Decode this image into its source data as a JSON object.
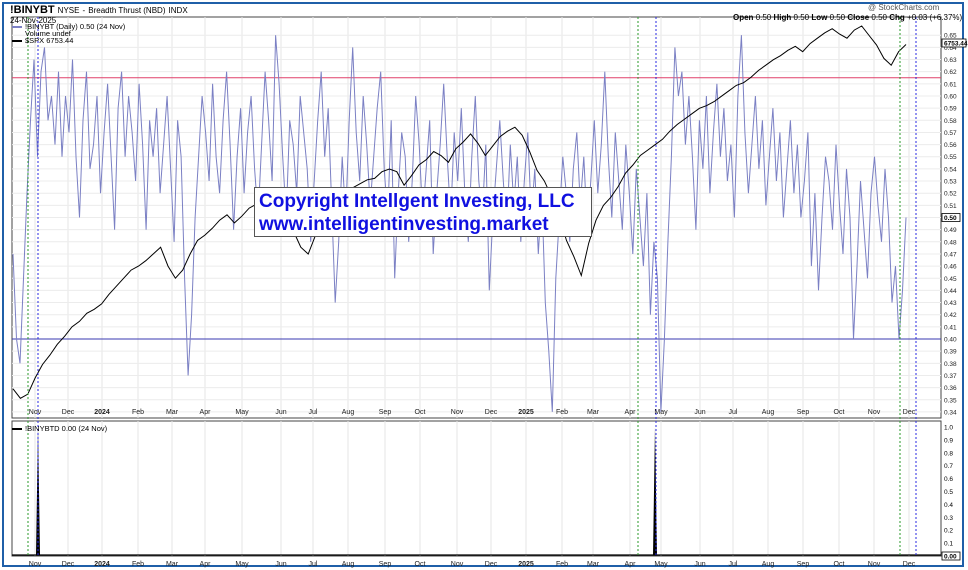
{
  "header": {
    "symbol": "!BINYBT",
    "exchange": "NYSE",
    "description": "Breadth Thrust (NBD)",
    "market": "INDX",
    "date": "24-Nov-2025",
    "credit": "@ StockCharts.com",
    "ohlc": {
      "open_label": "Open",
      "open": "0.50",
      "high_label": "High",
      "high": "0.50",
      "low_label": "Low",
      "low": "0.50",
      "close_label": "Close",
      "close": "0.50",
      "chg_label": "Chg",
      "chg": "+0.03 (+6.37%)"
    }
  },
  "legend": {
    "series1": "!BINYBT (Daily) 0.50 (24 Nov)",
    "series2": "Volume undef",
    "series3": "$SPX 6753.44"
  },
  "lower_legend": "!BINYBTD 0.00 (24 Nov)",
  "watermark": {
    "line1": "Copyright Intellgent Investing, LLC",
    "line2": "www.intelligentinvesting.market"
  },
  "colors": {
    "breadth": "#7b80c4",
    "spx": "#000000",
    "red_line": "#e0406a",
    "blue_line": "#3a3ab0",
    "green_marker": "#2a9a2a",
    "blue_marker": "#2a2ae0",
    "watermark_text": "#1010e0",
    "frame": "#1f5fa8"
  },
  "chart_data": [
    {
      "type": "line",
      "title": "!BINYBT NYSE - Breadth Thrust (NBD) INDX",
      "x_axis_ticks": [
        "Nov",
        "Dec",
        "2024",
        "Feb",
        "Mar",
        "Apr",
        "May",
        "Jun",
        "Jul",
        "Aug",
        "Sep",
        "Oct",
        "Nov",
        "Dec",
        "2025",
        "Feb",
        "Mar",
        "Apr",
        "May",
        "Jun",
        "Jul",
        "Aug",
        "Sep",
        "Oct",
        "Nov",
        "Dec"
      ],
      "y_axis_ticks": [
        "0.65",
        "0.64",
        "0.63",
        "0.62",
        "0.61",
        "0.60",
        "0.59",
        "0.58",
        "0.57",
        "0.56",
        "0.55",
        "0.54",
        "0.53",
        "0.52",
        "0.51",
        "0.50",
        "0.49",
        "0.48",
        "0.47",
        "0.46",
        "0.45",
        "0.44",
        "0.43",
        "0.42",
        "0.41",
        "0.40",
        "0.39",
        "0.38",
        "0.37",
        "0.36",
        "0.35",
        "0.34"
      ],
      "ylim": [
        0.335,
        0.665
      ],
      "horizontal_lines": [
        {
          "value": 0.615,
          "color": "red"
        },
        {
          "value": 0.4,
          "color": "blue"
        }
      ],
      "last_value_labels": [
        "6753.44",
        "0.50"
      ],
      "series": [
        {
          "name": "!BINYBT (Daily) 0.50 (24 Nov)",
          "axis": "right",
          "values": [
            0.47,
            0.4,
            0.38,
            0.45,
            0.52,
            0.58,
            0.63,
            0.55,
            0.62,
            0.64,
            0.58,
            0.6,
            0.56,
            0.62,
            0.55,
            0.6,
            0.57,
            0.63,
            0.55,
            0.5,
            0.58,
            0.62,
            0.54,
            0.56,
            0.6,
            0.52,
            0.57,
            0.61,
            0.55,
            0.49,
            0.59,
            0.62,
            0.55,
            0.6,
            0.57,
            0.53,
            0.61,
            0.56,
            0.49,
            0.58,
            0.55,
            0.59,
            0.52,
            0.56,
            0.6,
            0.54,
            0.48,
            0.58,
            0.55,
            0.45,
            0.37,
            0.42,
            0.5,
            0.55,
            0.6,
            0.57,
            0.53,
            0.61,
            0.55,
            0.52,
            0.58,
            0.62,
            0.56,
            0.49,
            0.55,
            0.59,
            0.52,
            0.57,
            0.6,
            0.54,
            0.5,
            0.56,
            0.62,
            0.58,
            0.53,
            0.65,
            0.61,
            0.55,
            0.5,
            0.58,
            0.56,
            0.52,
            0.6,
            0.57,
            0.54,
            0.48,
            0.53,
            0.58,
            0.62,
            0.55,
            0.59,
            0.51,
            0.43,
            0.48,
            0.55,
            0.5,
            0.58,
            0.64,
            0.57,
            0.53,
            0.6,
            0.56,
            0.51,
            0.55,
            0.59,
            0.62,
            0.54,
            0.5,
            0.58,
            0.45,
            0.52,
            0.57,
            0.55,
            0.48,
            0.53,
            0.6,
            0.56,
            0.5,
            0.54,
            0.58,
            0.47,
            0.52,
            0.56,
            0.61,
            0.55,
            0.5,
            0.57,
            0.53,
            0.59,
            0.52,
            0.48,
            0.55,
            0.6,
            0.53,
            0.5,
            0.56,
            0.44,
            0.5,
            0.54,
            0.58,
            0.53,
            0.49,
            0.56,
            0.51,
            0.55,
            0.48,
            0.53,
            0.57,
            0.5,
            0.54,
            0.47,
            0.52,
            0.43,
            0.39,
            0.34,
            0.45,
            0.5,
            0.55,
            0.52,
            0.48,
            0.54,
            0.57,
            0.51,
            0.55,
            0.49,
            0.53,
            0.58,
            0.52,
            0.56,
            0.62,
            0.55,
            0.5,
            0.57,
            0.53,
            0.49,
            0.56,
            0.52,
            0.47,
            0.54,
            0.5,
            0.46,
            0.52,
            0.42,
            0.48,
            0.45,
            0.34,
            0.4,
            0.48,
            0.55,
            0.64,
            0.6,
            0.62,
            0.56,
            0.6,
            0.55,
            0.49,
            0.58,
            0.54,
            0.6,
            0.52,
            0.57,
            0.61,
            0.55,
            0.59,
            0.53,
            0.56,
            0.5,
            0.6,
            0.65,
            0.57,
            0.52,
            0.56,
            0.6,
            0.54,
            0.58,
            0.51,
            0.55,
            0.59,
            0.53,
            0.57,
            0.5,
            0.54,
            0.58,
            0.52,
            0.56,
            0.5,
            0.53,
            0.57,
            0.46,
            0.52,
            0.44,
            0.5,
            0.55,
            0.53,
            0.49,
            0.56,
            0.51,
            0.47,
            0.54,
            0.5,
            0.4,
            0.46,
            0.53,
            0.49,
            0.45,
            0.52,
            0.55,
            0.51,
            0.48,
            0.54,
            0.5,
            0.43,
            0.46,
            0.4,
            0.44,
            0.5
          ]
        },
        {
          "name": "$SPX 6753.44",
          "axis": "left",
          "values": [
            4200,
            4130,
            4160,
            4280,
            4380,
            4450,
            4530,
            4590,
            4660,
            4700,
            4760,
            4790,
            4830,
            4900,
            4960,
            5020,
            5080,
            5110,
            5150,
            5200,
            5250,
            5110,
            5020,
            5080,
            5200,
            5300,
            5340,
            5390,
            5450,
            5490,
            5430,
            5480,
            5540,
            5570,
            5600,
            5620,
            5570,
            5490,
            5370,
            5250,
            5200,
            5340,
            5430,
            5550,
            5620,
            5650,
            5690,
            5720,
            5750,
            5760,
            5810,
            5830,
            5810,
            5710,
            5780,
            5860,
            5900,
            5960,
            5930,
            5880,
            5980,
            6030,
            6090,
            6020,
            5930,
            6000,
            6070,
            6110,
            6140,
            6080,
            5960,
            5820,
            5740,
            5620,
            5480,
            5300,
            5180,
            5040,
            5280,
            5450,
            5560,
            5620,
            5700,
            5800,
            5860,
            5930,
            5970,
            6010,
            6050,
            6110,
            6160,
            6200,
            6240,
            6280,
            6300,
            6330,
            6370,
            6410,
            6450,
            6470,
            6510,
            6560,
            6600,
            6640,
            6670,
            6710,
            6740,
            6700,
            6760,
            6800,
            6840,
            6870,
            6830,
            6800,
            6860,
            6890,
            6820,
            6750,
            6650,
            6600,
            6700,
            6753
          ]
        }
      ]
    },
    {
      "type": "line",
      "title": "!BINYBTD 0.00 (24 Nov)",
      "y_axis_ticks": [
        "1.0",
        "0.9",
        "0.8",
        "0.7",
        "0.6",
        "0.5",
        "0.4",
        "0.3",
        "0.2",
        "0.1",
        "0.00"
      ],
      "ylim": [
        0,
        1.0
      ],
      "x_axis_ticks": [
        "Nov",
        "Dec",
        "2024",
        "Feb",
        "Mar",
        "Apr",
        "May",
        "Jun",
        "Jul",
        "Aug",
        "Sep",
        "Oct",
        "Nov",
        "Dec",
        "2025",
        "Feb",
        "Mar",
        "Apr",
        "May",
        "Jun",
        "Jul",
        "Aug",
        "Sep",
        "Oct",
        "Nov",
        "Dec"
      ],
      "signals": [
        {
          "near": "Nov",
          "value": 1.0
        },
        {
          "near": "Apr",
          "value": 1.0
        }
      ],
      "last_value_label": "0.00"
    }
  ],
  "markers": {
    "green_dashed": [
      "Nov",
      "Apr",
      "Nov"
    ],
    "blue_dashed": [
      "Nov",
      "Apr",
      "Dec"
    ]
  }
}
